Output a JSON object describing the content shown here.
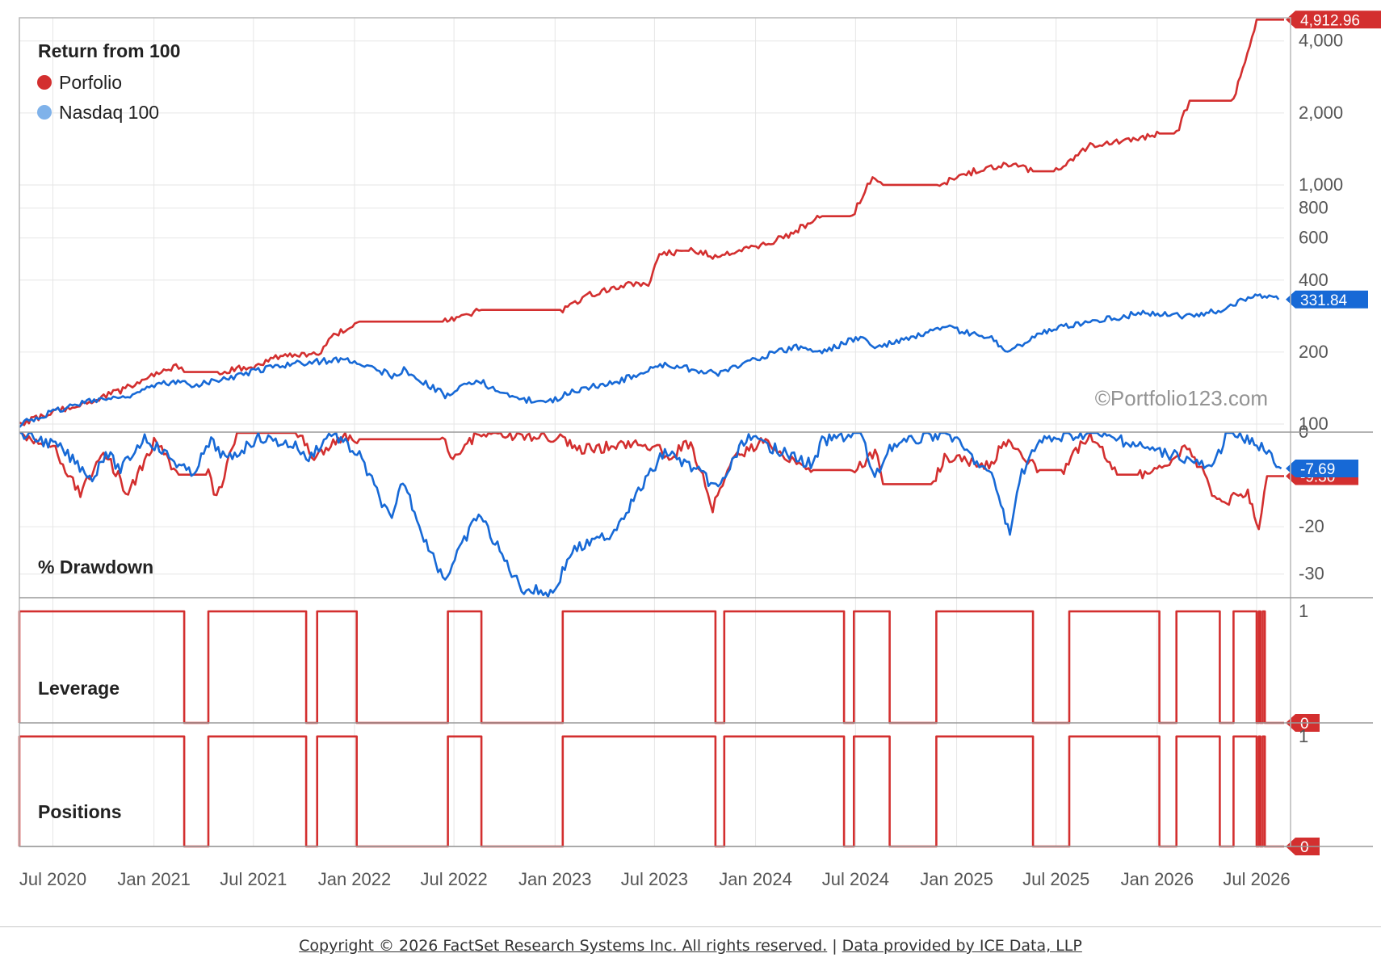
{
  "chart_data": {
    "type": "line",
    "x_range": [
      "2020-05-01",
      "2026-08-20"
    ],
    "x_ticks": [
      "Jul 2020",
      "Jan 2021",
      "Jul 2021",
      "Jan 2022",
      "Jul 2022",
      "Jan 2023",
      "Jul 2023",
      "Jan 2024",
      "Jul 2024",
      "Jan 2025",
      "Jul 2025",
      "Jan 2026",
      "Jul 2026"
    ],
    "watermark": "©Portfolio123.com",
    "panels": [
      {
        "id": "return",
        "title": "Return from 100",
        "scale": "log",
        "ylim": [
          100,
          5000
        ],
        "y_ticks": [
          "100",
          "200",
          "400",
          "600",
          "800",
          "1,000",
          "2,000",
          "4,000"
        ],
        "y_tick_values": [
          100,
          200,
          400,
          600,
          800,
          1000,
          2000,
          4000
        ],
        "legend": [
          {
            "name": "Porfolio",
            "color": "#d32f2f"
          },
          {
            "name": "Nasdaq 100",
            "color": "#7fb2ea"
          }
        ],
        "series": [
          {
            "name": "Porfolio",
            "color": "#d32f2f",
            "last_value": "4,912.96",
            "points": [
              [
                "2020-05-01",
                100
              ],
              [
                "2020-07-01",
                112
              ],
              [
                "2020-09-01",
                122
              ],
              [
                "2020-11-01",
                138
              ],
              [
                "2021-01-01",
                160
              ],
              [
                "2021-02-10",
                175
              ],
              [
                "2021-02-25",
                165
              ],
              [
                "2021-05-01",
                165
              ],
              [
                "2021-07-01",
                175
              ],
              [
                "2021-08-15",
                190
              ],
              [
                "2021-10-10",
                196
              ],
              [
                "2021-11-01",
                200
              ],
              [
                "2021-11-20",
                232
              ],
              [
                "2022-01-10",
                268
              ],
              [
                "2022-06-15",
                268
              ],
              [
                "2022-07-01",
                275
              ],
              [
                "2022-08-20",
                300
              ],
              [
                "2023-01-15",
                300
              ],
              [
                "2023-03-01",
                345
              ],
              [
                "2023-05-01",
                380
              ],
              [
                "2023-06-20",
                385
              ],
              [
                "2023-07-10",
                510
              ],
              [
                "2023-09-10",
                540
              ],
              [
                "2023-10-15",
                500
              ],
              [
                "2024-01-15",
                560
              ],
              [
                "2024-03-01",
                620
              ],
              [
                "2024-05-01",
                740
              ],
              [
                "2024-06-25",
                740
              ],
              [
                "2024-08-01",
                1080
              ],
              [
                "2024-08-20",
                1000
              ],
              [
                "2024-12-01",
                1000
              ],
              [
                "2025-02-01",
                1140
              ],
              [
                "2025-04-01",
                1230
              ],
              [
                "2025-05-20",
                1140
              ],
              [
                "2025-07-01",
                1140
              ],
              [
                "2025-09-01",
                1460
              ],
              [
                "2025-11-10",
                1520
              ],
              [
                "2026-01-05",
                1640
              ],
              [
                "2026-02-05",
                1640
              ],
              [
                "2026-03-01",
                2250
              ],
              [
                "2026-05-20",
                2250
              ],
              [
                "2026-07-01",
                4912.96
              ],
              [
                "2026-08-20",
                4912.96
              ]
            ]
          },
          {
            "name": "Nasdaq 100",
            "color": "#1769d6",
            "last_value": "331.84",
            "points": [
              [
                "2020-05-01",
                100
              ],
              [
                "2020-09-01",
                125
              ],
              [
                "2020-11-01",
                128
              ],
              [
                "2021-02-01",
                150
              ],
              [
                "2021-03-15",
                145
              ],
              [
                "2021-07-01",
                165
              ],
              [
                "2021-09-01",
                178
              ],
              [
                "2021-11-20",
                185
              ],
              [
                "2022-01-01",
                182
              ],
              [
                "2022-03-10",
                160
              ],
              [
                "2022-04-01",
                168
              ],
              [
                "2022-06-15",
                132
              ],
              [
                "2022-08-15",
                152
              ],
              [
                "2022-10-15",
                128
              ],
              [
                "2022-12-28",
                124
              ],
              [
                "2023-02-01",
                138
              ],
              [
                "2023-04-15",
                148
              ],
              [
                "2023-07-20",
                178
              ],
              [
                "2023-10-25",
                162
              ],
              [
                "2023-12-31",
                188
              ],
              [
                "2024-03-15",
                210
              ],
              [
                "2024-05-01",
                200
              ],
              [
                "2024-07-10",
                232
              ],
              [
                "2024-08-05",
                208
              ],
              [
                "2024-12-15",
                252
              ],
              [
                "2025-03-10",
                225
              ],
              [
                "2025-04-08",
                200
              ],
              [
                "2025-06-01",
                240
              ],
              [
                "2025-09-01",
                270
              ],
              [
                "2025-12-15",
                292
              ],
              [
                "2026-03-05",
                282
              ],
              [
                "2026-05-01",
                300
              ],
              [
                "2026-06-20",
                345
              ],
              [
                "2026-08-10",
                331.84
              ]
            ]
          }
        ]
      },
      {
        "id": "drawdown",
        "title": "% Drawdown",
        "ylim": [
          -35,
          0
        ],
        "y_ticks": [
          "0",
          "-20",
          "-30"
        ],
        "y_tick_values": [
          0,
          -20,
          -30
        ],
        "series": [
          {
            "name": "Porfolio",
            "color": "#d32f2f",
            "last_value": "-9.30",
            "points": [
              [
                "2020-05-01",
                0
              ],
              [
                "2020-07-01",
                -3
              ],
              [
                "2020-08-20",
                -13
              ],
              [
                "2020-10-01",
                -4
              ],
              [
                "2020-11-15",
                -13
              ],
              [
                "2021-01-01",
                -2
              ],
              [
                "2021-02-15",
                -9
              ],
              [
                "2021-04-10",
                -9
              ],
              [
                "2021-04-25",
                -14
              ],
              [
                "2021-06-01",
                0
              ],
              [
                "2021-09-20",
                0
              ],
              [
                "2021-10-15",
                -5
              ],
              [
                "2021-12-15",
                -1
              ],
              [
                "2022-01-10",
                -1.5
              ],
              [
                "2022-06-10",
                -1.5
              ],
              [
                "2022-06-25",
                -5
              ],
              [
                "2022-08-20",
                0
              ],
              [
                "2023-01-15",
                -1.5
              ],
              [
                "2023-02-10",
                -4
              ],
              [
                "2023-06-01",
                -2
              ],
              [
                "2023-08-01",
                -5
              ],
              [
                "2023-09-05",
                -2
              ],
              [
                "2023-10-15",
                -16
              ],
              [
                "2023-11-20",
                -6
              ],
              [
                "2024-01-15",
                -2
              ],
              [
                "2024-04-15",
                -8
              ],
              [
                "2024-06-25",
                -8
              ],
              [
                "2024-08-10",
                -4
              ],
              [
                "2024-08-20",
                -11
              ],
              [
                "2024-11-20",
                -11
              ],
              [
                "2024-12-10",
                -5
              ],
              [
                "2025-03-01",
                -7
              ],
              [
                "2025-04-01",
                -2
              ],
              [
                "2025-06-01",
                -8
              ],
              [
                "2025-07-15",
                -8
              ],
              [
                "2025-09-01",
                0
              ],
              [
                "2025-10-20",
                -9
              ],
              [
                "2025-12-01",
                -9
              ],
              [
                "2026-01-05",
                -8
              ],
              [
                "2026-03-01",
                -3
              ],
              [
                "2026-04-20",
                -15
              ],
              [
                "2026-06-15",
                -13
              ],
              [
                "2026-07-05",
                -20
              ],
              [
                "2026-07-20",
                -9.3
              ],
              [
                "2026-08-20",
                -9.3
              ]
            ]
          },
          {
            "name": "Nasdaq 100",
            "color": "#1769d6",
            "last_value": "-7.69",
            "points": [
              [
                "2020-05-01",
                0
              ],
              [
                "2020-07-10",
                -3
              ],
              [
                "2020-09-15",
                -10
              ],
              [
                "2020-10-05",
                -4
              ],
              [
                "2020-11-01",
                -8
              ],
              [
                "2020-12-15",
                -1
              ],
              [
                "2021-03-10",
                -9
              ],
              [
                "2021-04-15",
                -2
              ],
              [
                "2021-05-15",
                -6
              ],
              [
                "2021-07-10",
                -1
              ],
              [
                "2021-09-20",
                -3
              ],
              [
                "2021-10-05",
                -6
              ],
              [
                "2021-11-20",
                0
              ],
              [
                "2022-01-10",
                -5
              ],
              [
                "2022-03-10",
                -19
              ],
              [
                "2022-03-30",
                -10
              ],
              [
                "2022-05-20",
                -26
              ],
              [
                "2022-06-15",
                -31
              ],
              [
                "2022-08-15",
                -17
              ],
              [
                "2022-10-01",
                -27
              ],
              [
                "2022-11-01",
                -33
              ],
              [
                "2022-12-28",
                -34
              ],
              [
                "2023-02-01",
                -25
              ],
              [
                "2023-04-10",
                -22
              ],
              [
                "2023-07-20",
                -4
              ],
              [
                "2023-09-15",
                -8
              ],
              [
                "2023-10-25",
                -12
              ],
              [
                "2023-12-15",
                -1
              ],
              [
                "2024-04-15",
                -7
              ],
              [
                "2024-05-01",
                -2
              ],
              [
                "2024-07-10",
                0
              ],
              [
                "2024-08-05",
                -10
              ],
              [
                "2024-09-01",
                -3
              ],
              [
                "2024-12-15",
                0
              ],
              [
                "2025-03-10",
                -10
              ],
              [
                "2025-04-08",
                -22
              ],
              [
                "2025-04-25",
                -10
              ],
              [
                "2025-06-01",
                -2
              ],
              [
                "2025-09-01",
                0
              ],
              [
                "2025-12-01",
                -3
              ],
              [
                "2026-03-05",
                -6
              ],
              [
                "2026-04-10",
                -8
              ],
              [
                "2026-05-10",
                0
              ],
              [
                "2026-07-10",
                -3
              ],
              [
                "2026-08-15",
                -7.69
              ]
            ]
          }
        ]
      },
      {
        "id": "leverage",
        "title": "Leverage",
        "ylim": [
          0,
          1.05
        ],
        "y_ticks": [
          "1",
          "0"
        ],
        "y_tick_values": [
          1,
          0
        ],
        "series": [
          {
            "name": "Porfolio",
            "color": "#d32f2f",
            "last_value": "0",
            "invested": [
              [
                "2020-05-01",
                "2021-02-25"
              ],
              [
                "2021-04-10",
                "2021-10-05"
              ],
              [
                "2021-10-25",
                "2022-01-05"
              ],
              [
                "2022-06-20",
                "2022-08-20"
              ],
              [
                "2023-01-15",
                "2023-10-20"
              ],
              [
                "2023-11-05",
                "2024-06-10"
              ],
              [
                "2024-06-28",
                "2024-09-01"
              ],
              [
                "2024-11-25",
                "2025-05-20"
              ],
              [
                "2025-07-25",
                "2026-01-05"
              ],
              [
                "2026-02-05",
                "2026-04-25"
              ],
              [
                "2026-05-20",
                "2026-07-01"
              ],
              [
                "2026-07-05",
                "2026-07-08"
              ],
              [
                "2026-07-12",
                "2026-07-16"
              ]
            ]
          }
        ]
      },
      {
        "id": "positions",
        "title": "Positions",
        "ylim": [
          0,
          1.05
        ],
        "y_ticks": [
          "1",
          "0"
        ],
        "y_tick_values": [
          1,
          0
        ],
        "series": [
          {
            "name": "Porfolio",
            "color": "#d32f2f",
            "last_value": "0",
            "invested": [
              [
                "2020-05-01",
                "2021-02-25"
              ],
              [
                "2021-04-10",
                "2021-10-05"
              ],
              [
                "2021-10-25",
                "2022-01-05"
              ],
              [
                "2022-06-20",
                "2022-08-20"
              ],
              [
                "2023-01-15",
                "2023-10-20"
              ],
              [
                "2023-11-05",
                "2024-06-10"
              ],
              [
                "2024-06-28",
                "2024-09-01"
              ],
              [
                "2024-11-25",
                "2025-05-20"
              ],
              [
                "2025-07-25",
                "2026-01-05"
              ],
              [
                "2026-02-05",
                "2026-04-25"
              ],
              [
                "2026-05-20",
                "2026-07-01"
              ],
              [
                "2026-07-05",
                "2026-07-08"
              ],
              [
                "2026-07-12",
                "2026-07-16"
              ]
            ]
          }
        ]
      }
    ]
  },
  "footer": {
    "copyright": "Copyright © 2026 FactSet Research Systems Inc. All rights reserved.",
    "separator": "|",
    "data_credit": "Data provided by ICE Data, LLP"
  }
}
